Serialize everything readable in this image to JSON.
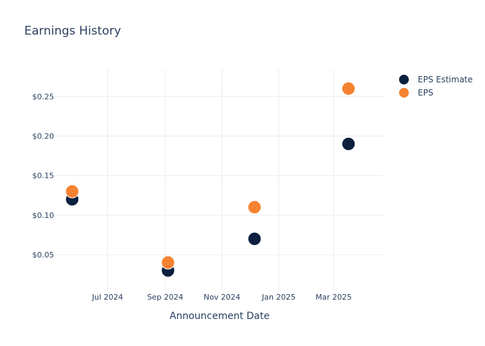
{
  "chart_data": {
    "type": "scatter",
    "title": "Earnings History",
    "xlabel": "Announcement Date",
    "ylabel": "",
    "x_ticks": [
      {
        "date": "2024-07-01",
        "label": "Jul 2024"
      },
      {
        "date": "2024-09-01",
        "label": "Sep 2024"
      },
      {
        "date": "2024-11-01",
        "label": "Nov 2024"
      },
      {
        "date": "2025-01-01",
        "label": "Jan 2025"
      },
      {
        "date": "2025-03-01",
        "label": "Mar 2025"
      }
    ],
    "y_ticks": [
      {
        "value": 0.05,
        "label": "$0.05"
      },
      {
        "value": 0.1,
        "label": "$0.10"
      },
      {
        "value": 0.15,
        "label": "$0.15"
      },
      {
        "value": 0.2,
        "label": "$0.20"
      },
      {
        "value": 0.25,
        "label": "$0.25"
      }
    ],
    "xlim": [
      "2024-05-06",
      "2025-04-24"
    ],
    "ylim": [
      0.0045,
      0.2845
    ],
    "grid": true,
    "legend_position": "top-right",
    "series": [
      {
        "name": "EPS Estimate",
        "color": "#0b1f3f",
        "points": [
          {
            "x": "2024-05-24",
            "y": 0.12
          },
          {
            "x": "2024-09-04",
            "y": 0.03
          },
          {
            "x": "2024-12-06",
            "y": 0.07
          },
          {
            "x": "2025-03-17",
            "y": 0.19
          }
        ]
      },
      {
        "name": "EPS",
        "color": "#f58231",
        "points": [
          {
            "x": "2024-05-24",
            "y": 0.13
          },
          {
            "x": "2024-09-04",
            "y": 0.04
          },
          {
            "x": "2024-12-06",
            "y": 0.11
          },
          {
            "x": "2025-03-17",
            "y": 0.26
          }
        ]
      }
    ]
  }
}
